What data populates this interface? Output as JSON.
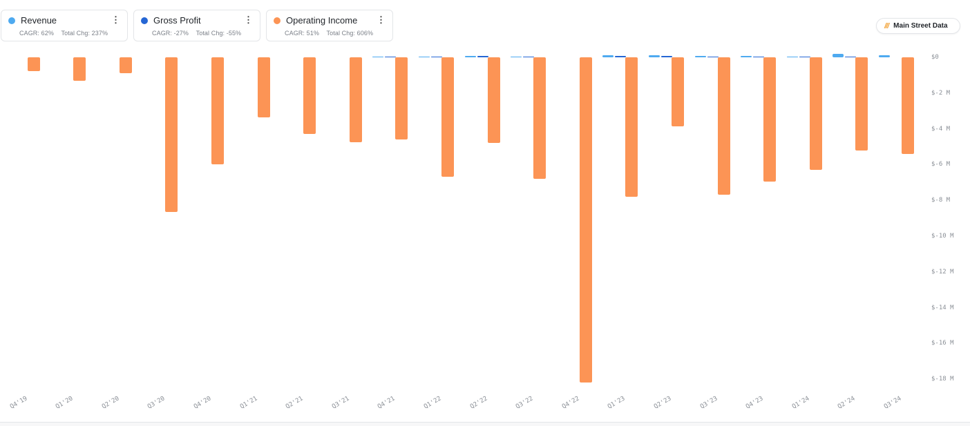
{
  "legend": [
    {
      "label": "Revenue",
      "color": "#4eaaf0",
      "cagr": "CAGR: 62%",
      "total_chg": "Total Chg: 237%"
    },
    {
      "label": "Gross Profit",
      "color": "#2566d4",
      "cagr": "CAGR: -27%",
      "total_chg": "Total Chg: -55%"
    },
    {
      "label": "Operating Income",
      "color": "#fc9455",
      "cagr": "CAGR: 51%",
      "total_chg": "Total Chg: 606%"
    }
  ],
  "brand": {
    "icon": "///",
    "label": "Main Street Data"
  },
  "menu_icon": "⋮",
  "chart_data": {
    "type": "bar",
    "title": "",
    "xlabel": "",
    "ylabel": "",
    "categories": [
      "Q4'19",
      "Q1'20",
      "Q2'20",
      "Q3'20",
      "Q4'20",
      "Q1'21",
      "Q2'21",
      "Q3'21",
      "Q4'21",
      "Q1'22",
      "Q2'22",
      "Q3'22",
      "Q4'22",
      "Q1'23",
      "Q2'23",
      "Q3'23",
      "Q4'23",
      "Q1'24",
      "Q2'24",
      "Q3'24"
    ],
    "series": [
      {
        "name": "Revenue",
        "color": "#4eaaf0",
        "unit": "$M",
        "values": [
          0,
          0,
          0,
          0,
          0,
          0,
          0,
          0,
          0.02,
          0.05,
          0.08,
          0.03,
          0,
          0.12,
          0.1,
          0.07,
          0.06,
          0.05,
          0.2,
          0.12
        ]
      },
      {
        "name": "Gross Profit",
        "color": "#2566d4",
        "unit": "$M",
        "values": [
          0,
          0,
          0,
          0,
          0,
          0,
          0,
          0,
          0.02,
          0.04,
          0.08,
          0.03,
          0,
          0.08,
          0.07,
          0.04,
          0.04,
          0.03,
          0.05,
          0
        ]
      },
      {
        "name": "Operating Income",
        "color": "#fc9455",
        "unit": "$M",
        "values": [
          -0.77,
          -1.3,
          -0.88,
          -8.65,
          -6.0,
          -3.36,
          -4.3,
          -4.75,
          -4.6,
          -6.68,
          -4.78,
          -6.8,
          -18.2,
          -7.8,
          -3.86,
          -7.68,
          -6.95,
          -6.3,
          -5.2,
          -5.4
        ]
      }
    ],
    "yticks": [
      "$0",
      "$-2 M",
      "$-4 M",
      "$-6 M",
      "$-8 M",
      "$-10 M",
      "$-12 M",
      "$-14 M",
      "$-16 M",
      "$-18 M"
    ],
    "ylim": [
      -18.5,
      0.3
    ],
    "grid": false,
    "legend_position": "top-left"
  }
}
